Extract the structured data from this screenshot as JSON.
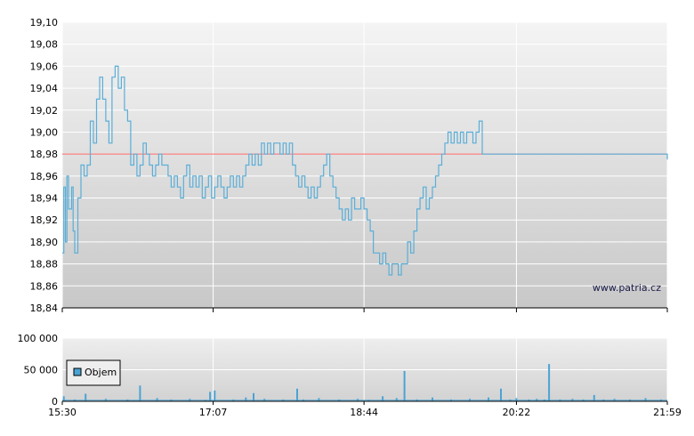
{
  "chart_data": [
    {
      "type": "line",
      "title": "",
      "xlabel": "",
      "ylabel": "",
      "ylim": [
        18.84,
        19.1
      ],
      "y_ticks": [
        "19,10",
        "19,08",
        "19,06",
        "19,04",
        "19,02",
        "19,00",
        "18,98",
        "18,96",
        "18,94",
        "18,92",
        "18,90",
        "18,88",
        "18,86",
        "18,84"
      ],
      "x_ticks": [
        "15:30",
        "17:07",
        "18:44",
        "20:22",
        "21:59"
      ],
      "reference_line": {
        "value": 18.98,
        "color": "#ff6666"
      },
      "watermark": "www.patria.cz",
      "line_color": "#5aaed8",
      "grid": true,
      "series": [
        {
          "x": [
            "15:30",
            "15:31",
            "15:32",
            "15:33",
            "15:34",
            "15:36",
            "15:37",
            "15:38",
            "15:40",
            "15:42",
            "15:44",
            "15:46",
            "15:48",
            "15:50",
            "15:52",
            "15:54",
            "15:56",
            "15:58",
            "16:00",
            "16:02",
            "16:04",
            "16:06",
            "16:08",
            "16:10",
            "16:12",
            "16:14",
            "16:16",
            "16:18",
            "16:20",
            "16:22",
            "16:24",
            "16:26",
            "16:28",
            "16:30",
            "16:32",
            "16:34",
            "16:36",
            "16:38",
            "16:40",
            "16:42",
            "16:44",
            "16:46",
            "16:48",
            "16:50",
            "16:52",
            "16:54",
            "16:56",
            "16:58",
            "17:00",
            "17:02",
            "17:04",
            "17:06",
            "17:08",
            "17:10",
            "17:12",
            "17:14",
            "17:16",
            "17:18",
            "17:20",
            "17:22",
            "17:24",
            "17:26",
            "17:28",
            "17:30",
            "17:32",
            "17:34",
            "17:36",
            "17:38",
            "17:40",
            "17:42",
            "17:44",
            "17:46",
            "17:48",
            "17:50",
            "17:52",
            "17:54",
            "17:56",
            "17:58",
            "18:00",
            "18:02",
            "18:04",
            "18:06",
            "18:08",
            "18:10",
            "18:12",
            "18:14",
            "18:16",
            "18:18",
            "18:20",
            "18:22",
            "18:24",
            "18:26",
            "18:28",
            "18:30",
            "18:32",
            "18:34",
            "18:36",
            "18:38",
            "18:40",
            "18:42",
            "18:44",
            "18:46",
            "18:48",
            "18:50",
            "18:52",
            "18:54",
            "18:56",
            "18:58",
            "19:00",
            "19:02",
            "19:04",
            "19:06",
            "19:08",
            "19:10",
            "19:12",
            "19:14",
            "19:16",
            "19:18",
            "19:20",
            "19:22",
            "19:24",
            "19:26",
            "19:28",
            "19:30",
            "19:32",
            "19:34",
            "19:36",
            "19:38",
            "19:40",
            "19:42",
            "19:44",
            "19:46",
            "19:48",
            "19:50",
            "19:52",
            "19:54",
            "19:56",
            "19:58",
            "20:00",
            "20:02",
            "20:04",
            "20:06",
            "20:08",
            "20:10",
            "20:12",
            "20:14",
            "20:16",
            "20:18",
            "20:20",
            "20:22",
            "20:24",
            "20:26",
            "20:28",
            "20:30",
            "20:32",
            "20:34",
            "20:36",
            "20:38",
            "20:40",
            "20:42",
            "20:44",
            "20:46",
            "20:48",
            "20:50",
            "20:52",
            "20:54",
            "20:56",
            "20:58",
            "21:00",
            "21:02",
            "21:04",
            "21:06",
            "21:08",
            "21:10",
            "21:12",
            "21:14",
            "21:16",
            "21:18",
            "21:20",
            "21:22",
            "21:24",
            "21:26",
            "21:28",
            "21:30",
            "21:32",
            "21:34",
            "21:36",
            "21:38",
            "21:40",
            "21:42",
            "21:44",
            "21:46",
            "21:48",
            "21:50",
            "21:52",
            "21:54",
            "21:56",
            "21:58",
            "21:59"
          ],
          "values": [
            18.89,
            18.95,
            18.9,
            18.96,
            18.93,
            18.95,
            18.91,
            18.89,
            18.94,
            18.97,
            18.96,
            18.97,
            19.01,
            18.99,
            19.03,
            19.05,
            19.03,
            19.01,
            18.99,
            19.05,
            19.06,
            19.04,
            19.05,
            19.02,
            19.01,
            18.97,
            18.98,
            18.96,
            18.97,
            18.99,
            18.98,
            18.97,
            18.96,
            18.97,
            18.98,
            18.97,
            18.97,
            18.96,
            18.95,
            18.96,
            18.95,
            18.94,
            18.96,
            18.97,
            18.95,
            18.96,
            18.95,
            18.96,
            18.94,
            18.95,
            18.96,
            18.94,
            18.95,
            18.96,
            18.95,
            18.94,
            18.95,
            18.96,
            18.95,
            18.96,
            18.95,
            18.96,
            18.97,
            18.98,
            18.97,
            18.98,
            18.97,
            18.99,
            18.98,
            18.99,
            18.98,
            18.99,
            18.99,
            18.98,
            18.99,
            18.98,
            18.99,
            18.97,
            18.96,
            18.95,
            18.96,
            18.95,
            18.94,
            18.95,
            18.94,
            18.95,
            18.96,
            18.97,
            18.98,
            18.96,
            18.95,
            18.94,
            18.93,
            18.92,
            18.93,
            18.92,
            18.94,
            18.93,
            18.93,
            18.94,
            18.93,
            18.92,
            18.91,
            18.89,
            18.89,
            18.88,
            18.89,
            18.88,
            18.87,
            18.88,
            18.88,
            18.87,
            18.88,
            18.88,
            18.9,
            18.89,
            18.91,
            18.93,
            18.94,
            18.95,
            18.93,
            18.94,
            18.95,
            18.96,
            18.97,
            18.98,
            18.99,
            19.0,
            18.99,
            19.0,
            18.99,
            19.0,
            18.99,
            19.0,
            19.0,
            18.99,
            19.0,
            19.01,
            18.98,
            18.98,
            18.98,
            18.98,
            18.98,
            18.98,
            18.98,
            18.98,
            18.98,
            18.98,
            18.98,
            18.98,
            18.98,
            18.98,
            18.98,
            18.98,
            18.98,
            18.98,
            18.98,
            18.98,
            18.98,
            18.98,
            18.98,
            18.98,
            18.98,
            18.98,
            18.98,
            18.98,
            18.98,
            18.98,
            18.98,
            18.98,
            18.98,
            18.98,
            18.98,
            18.98,
            18.98,
            18.98,
            18.98,
            18.98,
            18.98,
            18.98,
            18.98,
            18.98,
            18.98,
            18.98,
            18.98,
            18.98,
            18.98,
            18.98,
            18.98,
            18.98,
            18.98,
            18.98,
            18.98,
            18.98,
            18.98,
            18.98,
            18.98,
            18.98,
            18.975
          ]
        }
      ]
    },
    {
      "type": "bar",
      "title": "",
      "xlabel": "",
      "ylabel": "",
      "ylim": [
        0,
        100000
      ],
      "y_ticks": [
        "100 000",
        "50 000",
        "0"
      ],
      "x_ticks": [
        "15:30",
        "17:07",
        "18:44",
        "20:22",
        "21:59"
      ],
      "legend": {
        "position": "top-left",
        "entries": [
          "Objem"
        ]
      },
      "bar_color": "#4aa3d4",
      "series": [
        {
          "name": "Objem",
          "x": [
            "15:31",
            "15:38",
            "15:45",
            "15:58",
            "16:12",
            "16:20",
            "16:31",
            "16:40",
            "16:52",
            "17:02",
            "17:05",
            "17:08",
            "17:20",
            "17:28",
            "17:33",
            "17:40",
            "17:52",
            "18:01",
            "18:05",
            "18:15",
            "18:28",
            "18:40",
            "18:47",
            "18:56",
            "19:05",
            "19:10",
            "19:18",
            "19:28",
            "19:40",
            "19:52",
            "20:04",
            "20:12",
            "20:18",
            "20:22",
            "20:30",
            "20:35",
            "20:40",
            "20:43",
            "20:50",
            "20:58",
            "21:05",
            "21:12",
            "21:18",
            "21:25",
            "21:35",
            "21:45",
            "21:55"
          ],
          "values": [
            8000,
            3000,
            12000,
            4000,
            3000,
            25000,
            5000,
            3000,
            4000,
            2000,
            15000,
            17000,
            3000,
            6000,
            13000,
            4000,
            3000,
            20000,
            3000,
            5000,
            3000,
            4000,
            2000,
            8000,
            5000,
            48000,
            3000,
            6000,
            3000,
            4000,
            6000,
            20000,
            3000,
            5000,
            3000,
            4000,
            3000,
            59000,
            3000,
            4000,
            3000,
            10000,
            3000,
            4000,
            3000,
            5000,
            3000
          ]
        }
      ]
    }
  ]
}
